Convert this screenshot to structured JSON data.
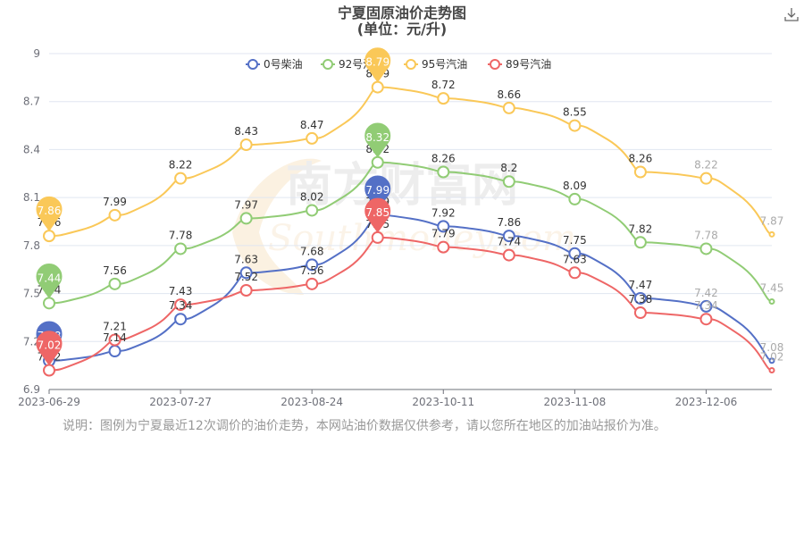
{
  "chart_data": {
    "type": "line",
    "title": "宁夏固原油价走势图",
    "subtitle": "(单位：元/升)",
    "x": [
      "2023-06-29",
      "",
      "2023-07-27",
      "",
      "2023-08-24",
      "",
      "2023-10-11",
      "",
      "2023-11-08",
      "",
      "2023-12-06",
      ""
    ],
    "x_tick_labels": [
      "2023-06-29",
      "2023-07-27",
      "2023-08-24",
      "2023-10-11",
      "2023-11-08",
      "2023-12-06"
    ],
    "ylim": [
      6.9,
      9
    ],
    "y_ticks": [
      "6.9",
      "7.2",
      "7.5",
      "7.8",
      "8.1",
      "8.4",
      "8.7",
      "9"
    ],
    "grid": true,
    "legend_position": "top-center",
    "series": [
      {
        "name": "0号柴油",
        "color": "#5470c6",
        "values": [
          7.08,
          7.14,
          7.34,
          7.63,
          7.68,
          7.99,
          7.92,
          7.86,
          7.75,
          7.47,
          7.42,
          7.08
        ]
      },
      {
        "name": "92号汽油",
        "color": "#91cc75",
        "values": [
          7.44,
          7.56,
          7.78,
          7.97,
          8.02,
          8.32,
          8.26,
          8.2,
          8.09,
          7.82,
          7.78,
          7.45
        ]
      },
      {
        "name": "95号汽油",
        "color": "#fac858",
        "values": [
          7.86,
          7.99,
          8.22,
          8.43,
          8.47,
          8.79,
          8.72,
          8.66,
          8.55,
          8.26,
          8.22,
          7.87
        ]
      },
      {
        "name": "89号汽油",
        "color": "#ee6666",
        "values": [
          7.02,
          7.21,
          7.43,
          7.52,
          7.56,
          7.85,
          7.79,
          7.74,
          7.63,
          7.38,
          7.34,
          7.02
        ]
      }
    ],
    "markers": {
      "0号柴油": [
        0,
        5
      ],
      "92号汽油": [
        0,
        5
      ],
      "95号汽油": [
        0,
        5
      ],
      "89号汽油": [
        0,
        5
      ]
    },
    "watermark": "南方财富网 Southmoney.com"
  },
  "note": "说明：图例为宁夏最近12次调价的油价走势，本网站油价数据仅供参考，请以您所在地区的加油站报价为准。",
  "toolbar": {
    "download_icon": "download-icon"
  }
}
